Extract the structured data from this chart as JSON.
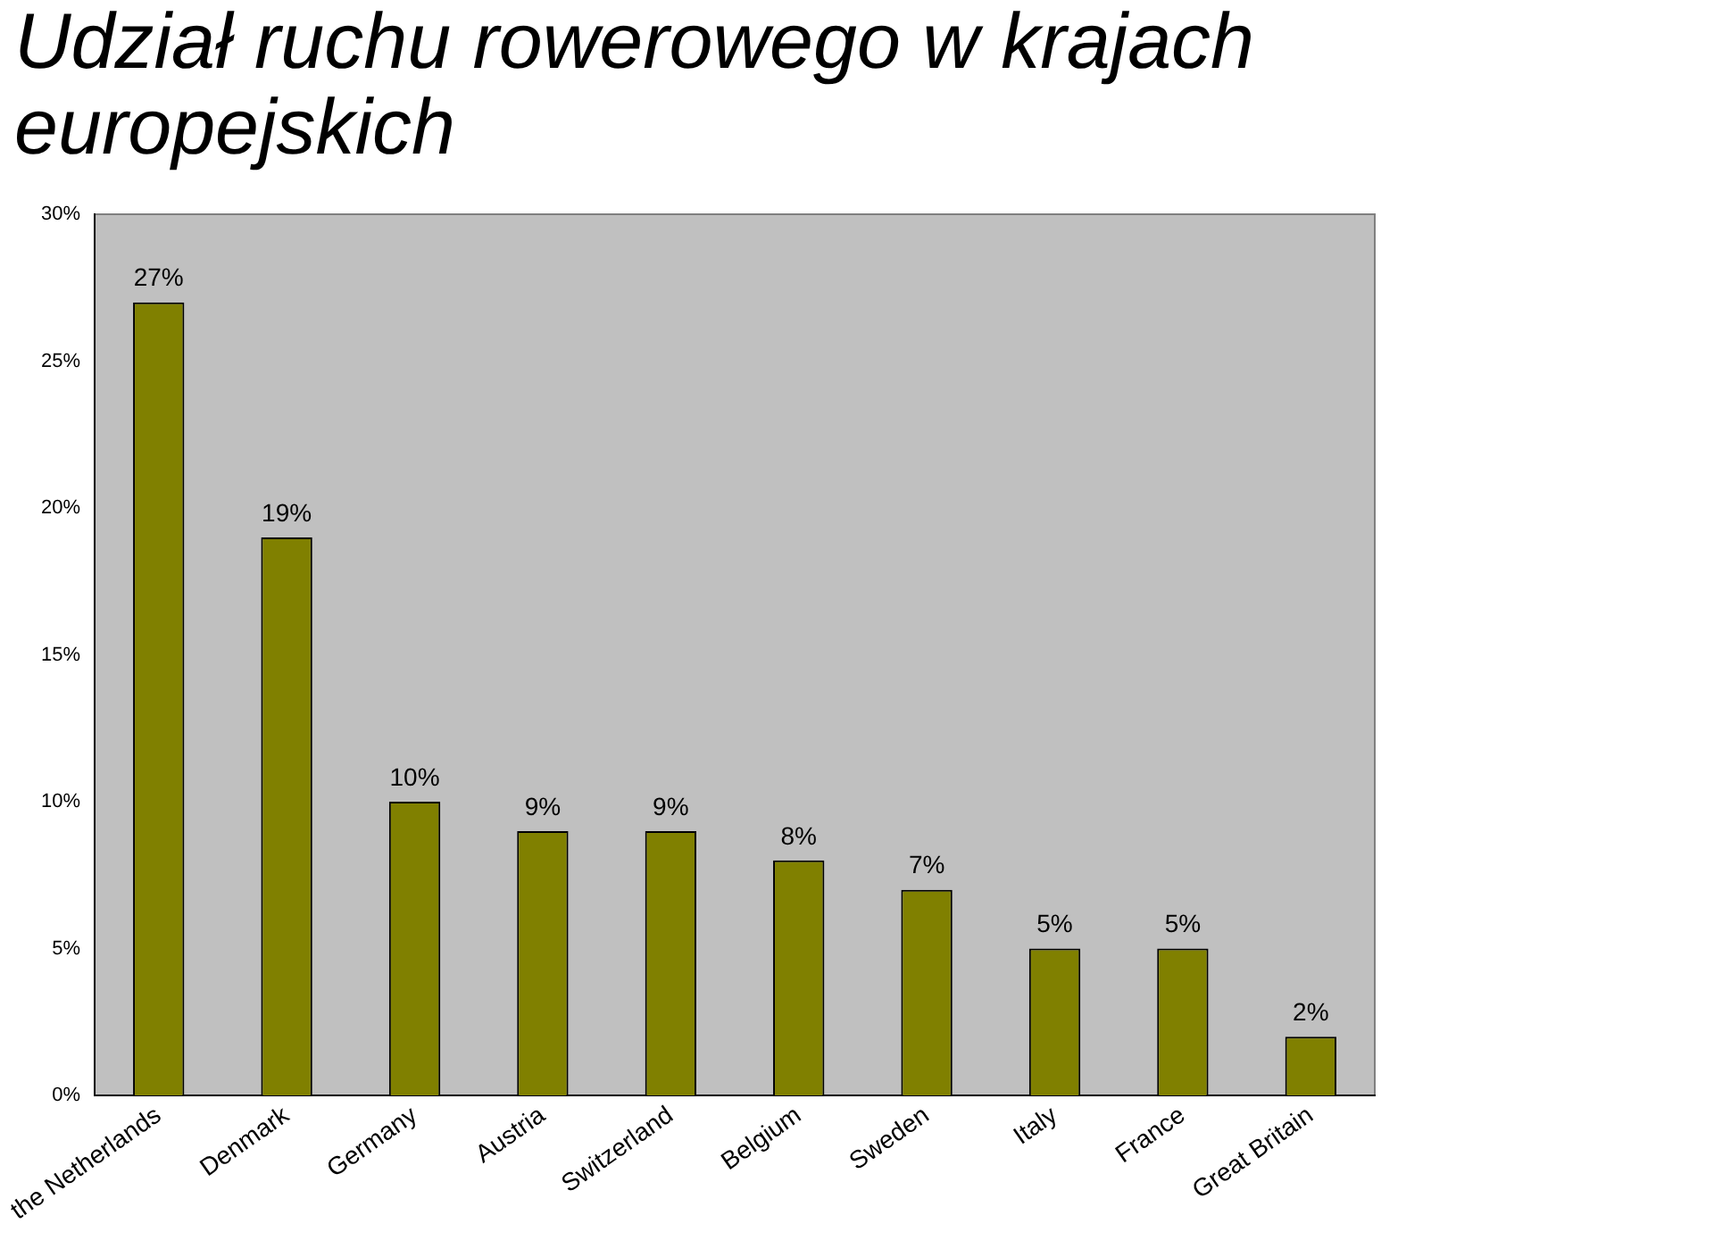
{
  "chart_data": {
    "type": "bar",
    "title": "Udział ruchu rowerowego w krajach europejskich",
    "categories": [
      "the Netherlands",
      "Denmark",
      "Germany",
      "Austria",
      "Switzerland",
      "Belgium",
      "Sweden",
      "Italy",
      "France",
      "Great Britain"
    ],
    "values": [
      27,
      19,
      10,
      9,
      9,
      8,
      7,
      5,
      5,
      2
    ],
    "value_labels": [
      "27%",
      "19%",
      "10%",
      "9%",
      "9%",
      "8%",
      "7%",
      "5%",
      "5%",
      "2%"
    ],
    "color": "#808000",
    "ylim": [
      0,
      30
    ],
    "yticks": [
      {
        "value": 0,
        "label": "0%"
      },
      {
        "value": 5,
        "label": "5%"
      },
      {
        "value": 10,
        "label": "10%"
      },
      {
        "value": 15,
        "label": "15%"
      },
      {
        "value": 20,
        "label": "20%"
      },
      {
        "value": 25,
        "label": "25%"
      },
      {
        "value": 30,
        "label": "30%"
      }
    ],
    "grid": false,
    "legend": false
  }
}
